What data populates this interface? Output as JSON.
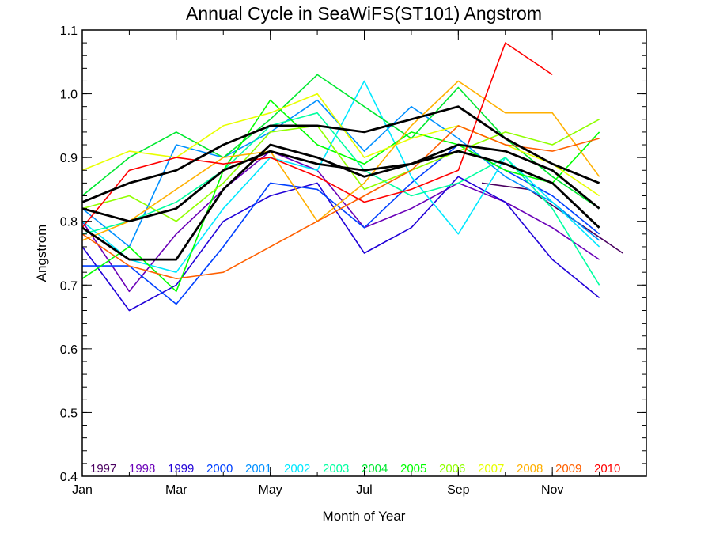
{
  "chart_data": {
    "type": "line",
    "title": "Annual Cycle in SeaWiFS(ST101) Angstrom",
    "xlabel": "Month of Year",
    "ylabel": "Angstrom",
    "xlim": [
      1,
      13
    ],
    "ylim": [
      0.4,
      1.1
    ],
    "x_ticks": [
      {
        "value": 1,
        "label": "Jan"
      },
      {
        "value": 3,
        "label": "Mar"
      },
      {
        "value": 5,
        "label": "May"
      },
      {
        "value": 7,
        "label": "Jul"
      },
      {
        "value": 9,
        "label": "Sep"
      },
      {
        "value": 11,
        "label": "Nov"
      }
    ],
    "y_ticks": [
      {
        "value": 0.4,
        "label": "0.4"
      },
      {
        "value": 0.5,
        "label": "0.5"
      },
      {
        "value": 0.6,
        "label": "0.6"
      },
      {
        "value": 0.7,
        "label": "0.7"
      },
      {
        "value": 0.8,
        "label": "0.8"
      },
      {
        "value": 0.9,
        "label": "0.9"
      },
      {
        "value": 1.0,
        "label": "1.0"
      },
      {
        "value": 1.1,
        "label": "1.1"
      }
    ],
    "grid": false,
    "legend_position": "bottom, inside plot",
    "series": [
      {
        "name": "1997",
        "color": "#4a0060",
        "x": [
          9.5,
          10.5,
          11.5,
          12.5
        ],
        "values": [
          0.86,
          0.85,
          0.8,
          0.75
        ]
      },
      {
        "name": "1998",
        "color": "#6a00b8",
        "x": [
          1,
          2,
          3,
          4,
          5,
          6,
          7,
          8,
          9,
          10,
          11,
          12
        ],
        "values": [
          0.8,
          0.69,
          0.78,
          0.85,
          0.91,
          0.88,
          0.79,
          0.82,
          0.86,
          0.83,
          0.79,
          0.74
        ]
      },
      {
        "name": "1999",
        "color": "#2000d8",
        "x": [
          1,
          2,
          3,
          4,
          5,
          6,
          7,
          8,
          9,
          10,
          11,
          12
        ],
        "values": [
          0.76,
          0.66,
          0.7,
          0.8,
          0.84,
          0.86,
          0.75,
          0.79,
          0.87,
          0.83,
          0.74,
          0.68
        ]
      },
      {
        "name": "2000",
        "color": "#0040ff",
        "x": [
          1,
          2,
          3,
          4,
          5,
          6,
          7,
          8,
          9,
          10,
          11,
          12
        ],
        "values": [
          0.73,
          0.73,
          0.67,
          0.76,
          0.86,
          0.85,
          0.79,
          0.86,
          0.92,
          0.88,
          0.84,
          0.78
        ]
      },
      {
        "name": "2001",
        "color": "#0090ff",
        "x": [
          1,
          2,
          3,
          4,
          5,
          6,
          7,
          8,
          9,
          10,
          11,
          12
        ],
        "values": [
          0.82,
          0.76,
          0.92,
          0.9,
          0.94,
          0.99,
          0.91,
          0.98,
          0.93,
          0.87,
          0.83,
          0.77
        ]
      },
      {
        "name": "2002",
        "color": "#00e8ff",
        "x": [
          1,
          2,
          3,
          4,
          5,
          6,
          7,
          8,
          9,
          10,
          11,
          12
        ],
        "values": [
          0.8,
          0.74,
          0.72,
          0.82,
          0.9,
          0.88,
          1.02,
          0.87,
          0.78,
          0.9,
          0.83,
          0.76
        ]
      },
      {
        "name": "2003",
        "color": "#00ffa0",
        "x": [
          1,
          2,
          3,
          4,
          5,
          6,
          7,
          8,
          9,
          10,
          11,
          12
        ],
        "values": [
          0.78,
          0.8,
          0.83,
          0.88,
          0.95,
          0.97,
          0.88,
          0.84,
          0.86,
          0.9,
          0.82,
          0.7
        ]
      },
      {
        "name": "2004",
        "color": "#00e830",
        "x": [
          1,
          2,
          3,
          4,
          5,
          6,
          7,
          8,
          9,
          10,
          11,
          12
        ],
        "values": [
          0.84,
          0.9,
          0.94,
          0.9,
          0.96,
          1.03,
          0.98,
          0.93,
          1.01,
          0.93,
          0.87,
          0.82
        ]
      },
      {
        "name": "2005",
        "color": "#00ff00",
        "x": [
          1,
          2,
          3,
          4,
          5,
          6,
          7,
          8,
          9,
          10,
          11,
          12
        ],
        "values": [
          0.71,
          0.76,
          0.69,
          0.88,
          0.99,
          0.92,
          0.89,
          0.94,
          0.92,
          0.88,
          0.86,
          0.94
        ]
      },
      {
        "name": "2006",
        "color": "#90ff00",
        "x": [
          1,
          2,
          3,
          4,
          5,
          6,
          7,
          8,
          9,
          10,
          11,
          12
        ],
        "values": [
          0.82,
          0.84,
          0.8,
          0.86,
          0.94,
          0.95,
          0.85,
          0.88,
          0.91,
          0.94,
          0.92,
          0.96
        ]
      },
      {
        "name": "2007",
        "color": "#e8ff00",
        "x": [
          1,
          2,
          3,
          4,
          5,
          6,
          7,
          8,
          9,
          10,
          11,
          12
        ],
        "values": [
          0.88,
          0.91,
          0.9,
          0.95,
          0.97,
          1.0,
          0.9,
          0.93,
          0.95,
          0.92,
          0.89,
          0.84
        ]
      },
      {
        "name": "2008",
        "color": "#ffb000",
        "x": [
          1,
          2,
          3,
          4,
          5,
          6,
          7,
          8,
          9,
          10,
          11,
          12
        ],
        "values": [
          0.77,
          0.8,
          0.85,
          0.9,
          0.91,
          0.8,
          0.86,
          0.95,
          1.02,
          0.97,
          0.97,
          0.87
        ]
      },
      {
        "name": "2009",
        "color": "#ff6000",
        "x": [
          1,
          2,
          3,
          4,
          5,
          6,
          7,
          8,
          9,
          10,
          11,
          12
        ],
        "values": [
          0.78,
          0.73,
          0.71,
          0.72,
          0.76,
          0.8,
          0.84,
          0.88,
          0.95,
          0.92,
          0.91,
          0.93
        ]
      },
      {
        "name": "2010",
        "color": "#ff0000",
        "x": [
          1,
          2,
          3,
          4,
          5,
          6,
          7,
          8,
          9,
          10,
          11
        ],
        "values": [
          0.79,
          0.88,
          0.9,
          0.89,
          0.9,
          0.87,
          0.83,
          0.85,
          0.88,
          1.08,
          1.03
        ]
      },
      {
        "name": "",
        "color": "#000000",
        "x": [
          1,
          2,
          3,
          4,
          5,
          6,
          7,
          8,
          9,
          10,
          11,
          12
        ],
        "values": [
          0.79,
          0.74,
          0.74,
          0.85,
          0.92,
          0.9,
          0.87,
          0.89,
          0.91,
          0.89,
          0.86,
          0.79
        ]
      },
      {
        "name": "",
        "color": "#000000",
        "x": [
          1,
          2,
          3,
          4,
          5,
          6,
          7,
          8,
          9,
          10,
          11,
          12
        ],
        "values": [
          0.82,
          0.8,
          0.82,
          0.88,
          0.91,
          0.89,
          0.88,
          0.89,
          0.92,
          0.91,
          0.88,
          0.82
        ]
      },
      {
        "name": "",
        "color": "#000000",
        "x": [
          1,
          2,
          3,
          4,
          5,
          6,
          7,
          8,
          9,
          10,
          11,
          12
        ],
        "values": [
          0.83,
          0.86,
          0.88,
          0.92,
          0.95,
          0.95,
          0.94,
          0.96,
          0.98,
          0.93,
          0.89,
          0.86
        ]
      }
    ]
  }
}
